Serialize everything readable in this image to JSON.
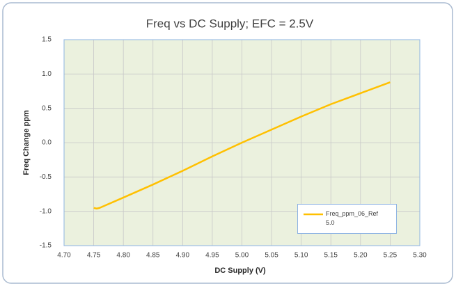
{
  "chart_data": {
    "type": "line",
    "title": "Freq vs DC Supply; EFC = 2.5V",
    "x_label": "DC Supply (V)",
    "y_label": "Freq Change ppm",
    "x": [
      4.75,
      4.755,
      4.76,
      4.8,
      4.85,
      4.9,
      4.95,
      5.0,
      5.05,
      5.1,
      5.15,
      5.2,
      5.25
    ],
    "series": [
      {
        "name": "Freq_ppm_06_Ref 5.0",
        "color": "#ffc000",
        "values": [
          -0.95,
          -0.96,
          -0.95,
          -0.8,
          -0.61,
          -0.41,
          -0.2,
          0.0,
          0.19,
          0.38,
          0.56,
          0.72,
          0.88
        ]
      }
    ],
    "xlim": [
      4.7,
      5.3
    ],
    "xticks": [
      {
        "value": 4.7,
        "label": "4.70"
      },
      4.75,
      {
        "value": 4.8,
        "label": "4.80"
      },
      4.85,
      {
        "value": 4.9,
        "label": "4.90"
      },
      4.95,
      {
        "value": 5.0,
        "label": "5.00"
      },
      5.05,
      {
        "value": 5.1,
        "label": "5.10"
      },
      5.15,
      {
        "value": 5.2,
        "label": "5.20"
      },
      5.25,
      {
        "value": 5.3,
        "label": "5.30"
      }
    ],
    "ylim": [
      -1.5,
      1.5
    ],
    "yticks": [
      -1.5,
      {
        "value": -1.0,
        "label": "-1.0"
      },
      -0.5,
      {
        "value": 0.0,
        "label": "0.0"
      },
      0.5,
      {
        "value": 1.0,
        "label": "1.0"
      },
      1.5
    ],
    "grid": true,
    "legend": "lower-right"
  }
}
